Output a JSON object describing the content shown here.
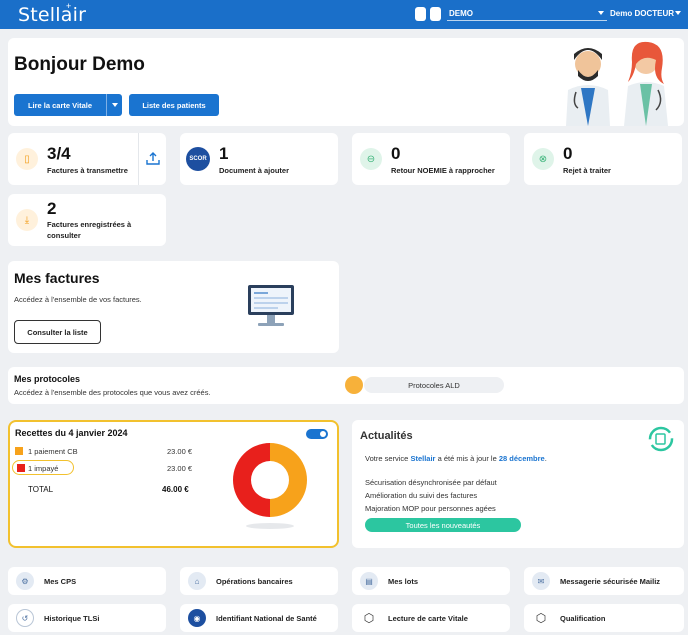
{
  "topbar": {
    "logo": "Stellair",
    "account_select": "DEMO",
    "user_menu": "Demo DOCTEUR"
  },
  "welcome": {
    "title": "Bonjour Demo",
    "read_card_label": "Lire la carte Vitale",
    "patients_label": "Liste des patients"
  },
  "stats": [
    {
      "value": "3/4",
      "label": "Factures à transmettre"
    },
    {
      "value": "1",
      "label": "Document à ajouter",
      "badge": "SCOR"
    },
    {
      "value": "0",
      "label": "Retour NOEMIE à rapprocher"
    },
    {
      "value": "0",
      "label": "Rejet à traiter"
    },
    {
      "value": "2",
      "label_line1": "Factures enregistrées à",
      "label_line2": "consulter"
    }
  ],
  "factures": {
    "title": "Mes factures",
    "description": "Accédez à l'ensemble de vos factures.",
    "button": "Consulter la liste"
  },
  "protocoles": {
    "title": "Mes protocoles",
    "description": "Accédez à l'ensemble des protocoles que vous avez créés.",
    "pill": "Protocoles ALD"
  },
  "recettes": {
    "title": "Recettes du 4 janvier 2024",
    "rows": [
      {
        "label": "1 paiement CB",
        "amount": "23.00 €",
        "color": "#f7a21b"
      },
      {
        "label": "1 impayé",
        "amount": "23.00 €",
        "color": "#e8201c"
      }
    ],
    "total_label": "TOTAL",
    "total_amount": "46.00 €",
    "highlight_color": "#f2c12e"
  },
  "chart_data": {
    "type": "pie",
    "categories": [
      "1 paiement CB",
      "1 impayé"
    ],
    "values": [
      23.0,
      23.0
    ],
    "colors": [
      "#f7a21b",
      "#e8201c"
    ]
  },
  "actualites": {
    "title": "Actualités",
    "update_prefix": "Votre service",
    "update_brand": "Stellair",
    "update_middle": "a été mis à jour le",
    "update_date": "28 décembre",
    "update_suffix": ".",
    "items": [
      "Sécurisation désynchronisée par défaut",
      "Amélioration du suivi des factures",
      "Majoration MOP pour personnes agées"
    ],
    "button": "Toutes les nouveautés"
  },
  "tiles": [
    {
      "label": "Mes CPS",
      "icon": "gear-icon"
    },
    {
      "label": "Opérations bancaires",
      "icon": "bank-icon"
    },
    {
      "label": "Mes lots",
      "icon": "lots-icon"
    },
    {
      "label": "Messagerie sécurisée Mailiz",
      "icon": "mail-icon"
    },
    {
      "label": "Historique TLSi",
      "icon": "tlsi-icon"
    },
    {
      "label": "Identifiant National de Santé",
      "icon": "ins-icon"
    },
    {
      "label": "Lecture de carte Vitale",
      "icon": "cube-icon"
    },
    {
      "label": "Qualification",
      "icon": "cube-icon"
    }
  ],
  "colors": {
    "brand_blue": "#1a6fc9",
    "accent_teal": "#2cc6a0"
  }
}
